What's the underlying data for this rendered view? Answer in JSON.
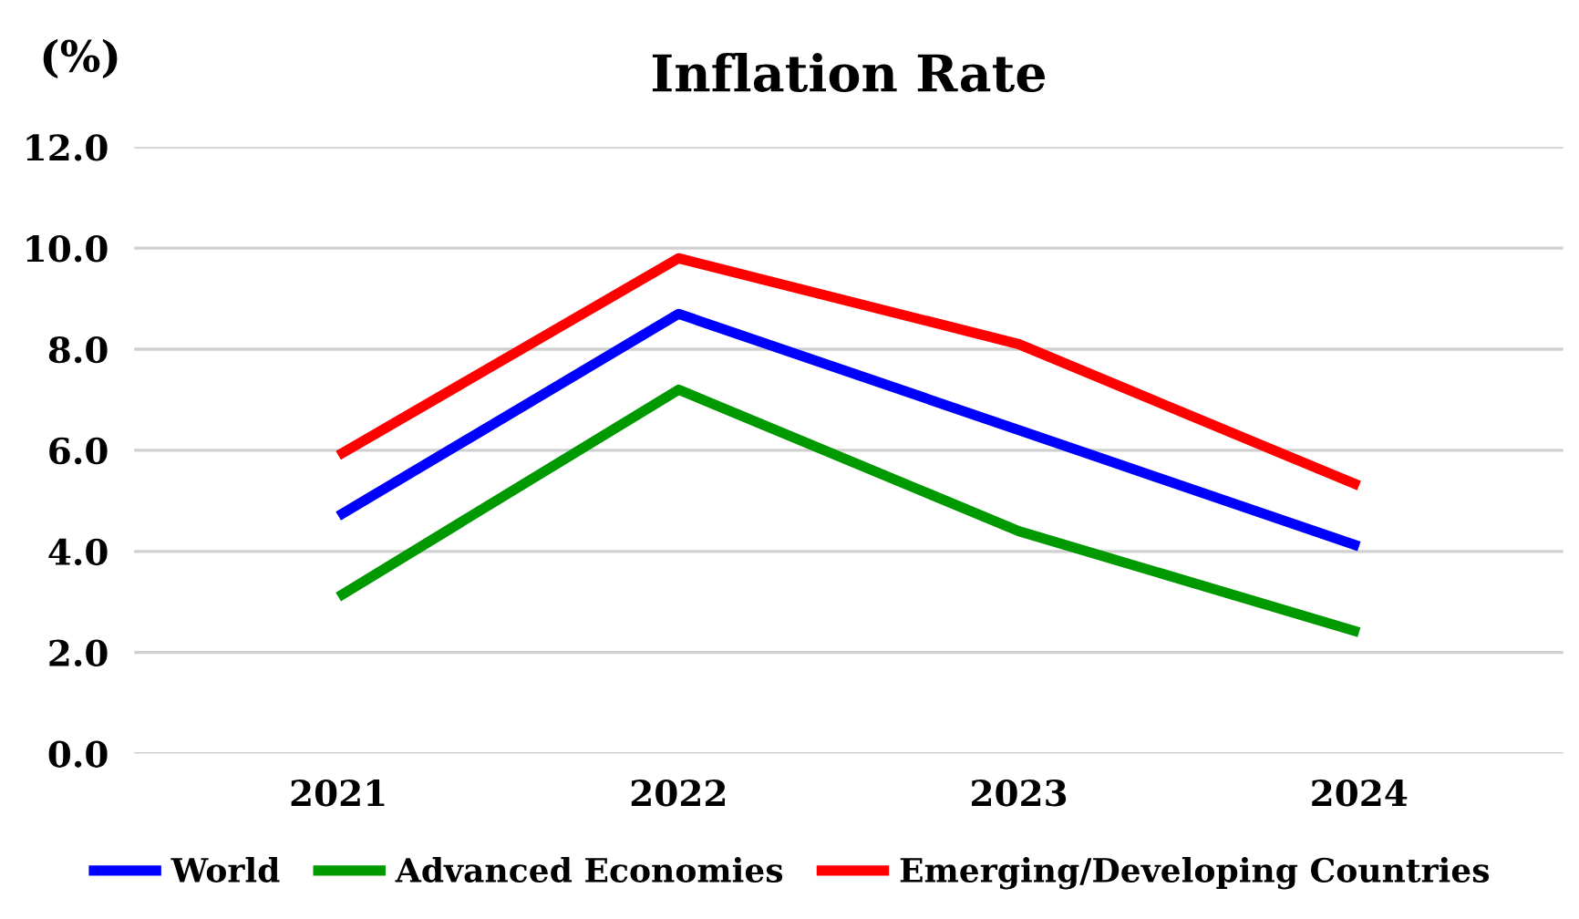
{
  "chart_data": {
    "type": "line",
    "title": "Inflation Rate",
    "ylabel": "(%)",
    "categories": [
      "2021",
      "2022",
      "2023",
      "2024"
    ],
    "series": [
      {
        "name": "World",
        "color": "#0000ff",
        "values": [
          4.7,
          8.7,
          6.4,
          4.1
        ]
      },
      {
        "name": "Advanced Economies",
        "color": "#009900",
        "values": [
          3.1,
          7.2,
          4.4,
          2.4
        ]
      },
      {
        "name": "Emerging/Developing Countries",
        "color": "#ff0000",
        "values": [
          5.9,
          9.8,
          8.1,
          5.3
        ]
      }
    ],
    "ylim": [
      0,
      12
    ],
    "yticks": [
      {
        "value": 0,
        "label": "0.0"
      },
      {
        "value": 2,
        "label": "2.0"
      },
      {
        "value": 4,
        "label": "4.0"
      },
      {
        "value": 6,
        "label": "6.0"
      },
      {
        "value": 8,
        "label": "8.0"
      },
      {
        "value": 10,
        "label": "10.0"
      },
      {
        "value": 12,
        "label": "12.0"
      }
    ],
    "grid": "y",
    "legend": "bottom",
    "marker": "none",
    "line_style": "solid"
  }
}
